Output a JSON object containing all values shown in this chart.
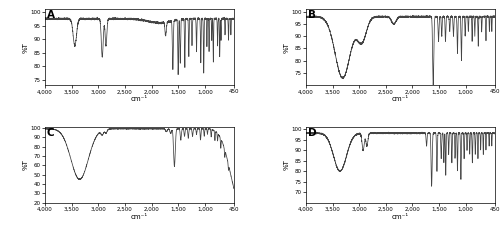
{
  "title_A": "A",
  "title_B": "B",
  "title_C": "C",
  "title_D": "D",
  "xlabel": "cm⁻¹",
  "ylabel": "%T",
  "line_color": "#444444",
  "background_color": "#ffffff",
  "panels": [
    {
      "ylim": [
        73,
        101
      ],
      "yticks": [
        75,
        80,
        85,
        90,
        95,
        100
      ]
    },
    {
      "ylim": [
        70,
        101
      ],
      "yticks": [
        75,
        80,
        85,
        90,
        95,
        100
      ]
    },
    {
      "ylim": [
        20,
        101
      ],
      "yticks": [
        20,
        30,
        40,
        50,
        60,
        70,
        80,
        90,
        100
      ]
    },
    {
      "ylim": [
        65,
        101
      ],
      "yticks": [
        70,
        75,
        80,
        85,
        90,
        95,
        100
      ]
    }
  ]
}
